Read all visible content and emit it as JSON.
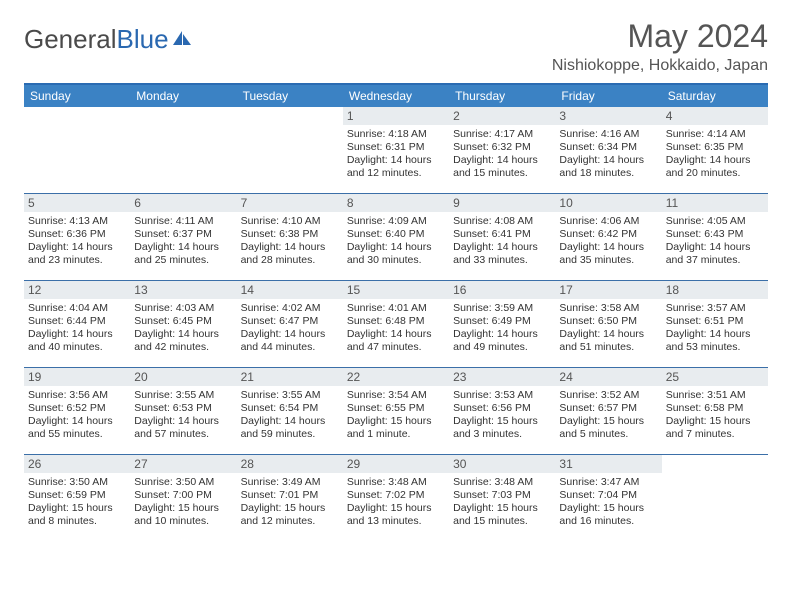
{
  "brand": {
    "part1": "General",
    "part2": "Blue"
  },
  "title": "May 2024",
  "location": "Nishiokoppe, Hokkaido, Japan",
  "colors": {
    "header_bg": "#3b82c4",
    "header_border_top": "#2a6bb2",
    "week_border": "#3b6fa8",
    "daynum_bg": "#e8ecef",
    "text_gray": "#555555",
    "brand_blue": "#2a68b0"
  },
  "dayNames": [
    "Sunday",
    "Monday",
    "Tuesday",
    "Wednesday",
    "Thursday",
    "Friday",
    "Saturday"
  ],
  "weeks": [
    [
      {
        "empty": true
      },
      {
        "empty": true
      },
      {
        "empty": true
      },
      {
        "num": "1",
        "sunrise": "4:18 AM",
        "sunset": "6:31 PM",
        "daylight": "14 hours and 12 minutes."
      },
      {
        "num": "2",
        "sunrise": "4:17 AM",
        "sunset": "6:32 PM",
        "daylight": "14 hours and 15 minutes."
      },
      {
        "num": "3",
        "sunrise": "4:16 AM",
        "sunset": "6:34 PM",
        "daylight": "14 hours and 18 minutes."
      },
      {
        "num": "4",
        "sunrise": "4:14 AM",
        "sunset": "6:35 PM",
        "daylight": "14 hours and 20 minutes."
      }
    ],
    [
      {
        "num": "5",
        "sunrise": "4:13 AM",
        "sunset": "6:36 PM",
        "daylight": "14 hours and 23 minutes."
      },
      {
        "num": "6",
        "sunrise": "4:11 AM",
        "sunset": "6:37 PM",
        "daylight": "14 hours and 25 minutes."
      },
      {
        "num": "7",
        "sunrise": "4:10 AM",
        "sunset": "6:38 PM",
        "daylight": "14 hours and 28 minutes."
      },
      {
        "num": "8",
        "sunrise": "4:09 AM",
        "sunset": "6:40 PM",
        "daylight": "14 hours and 30 minutes."
      },
      {
        "num": "9",
        "sunrise": "4:08 AM",
        "sunset": "6:41 PM",
        "daylight": "14 hours and 33 minutes."
      },
      {
        "num": "10",
        "sunrise": "4:06 AM",
        "sunset": "6:42 PM",
        "daylight": "14 hours and 35 minutes."
      },
      {
        "num": "11",
        "sunrise": "4:05 AM",
        "sunset": "6:43 PM",
        "daylight": "14 hours and 37 minutes."
      }
    ],
    [
      {
        "num": "12",
        "sunrise": "4:04 AM",
        "sunset": "6:44 PM",
        "daylight": "14 hours and 40 minutes."
      },
      {
        "num": "13",
        "sunrise": "4:03 AM",
        "sunset": "6:45 PM",
        "daylight": "14 hours and 42 minutes."
      },
      {
        "num": "14",
        "sunrise": "4:02 AM",
        "sunset": "6:47 PM",
        "daylight": "14 hours and 44 minutes."
      },
      {
        "num": "15",
        "sunrise": "4:01 AM",
        "sunset": "6:48 PM",
        "daylight": "14 hours and 47 minutes."
      },
      {
        "num": "16",
        "sunrise": "3:59 AM",
        "sunset": "6:49 PM",
        "daylight": "14 hours and 49 minutes."
      },
      {
        "num": "17",
        "sunrise": "3:58 AM",
        "sunset": "6:50 PM",
        "daylight": "14 hours and 51 minutes."
      },
      {
        "num": "18",
        "sunrise": "3:57 AM",
        "sunset": "6:51 PM",
        "daylight": "14 hours and 53 minutes."
      }
    ],
    [
      {
        "num": "19",
        "sunrise": "3:56 AM",
        "sunset": "6:52 PM",
        "daylight": "14 hours and 55 minutes."
      },
      {
        "num": "20",
        "sunrise": "3:55 AM",
        "sunset": "6:53 PM",
        "daylight": "14 hours and 57 minutes."
      },
      {
        "num": "21",
        "sunrise": "3:55 AM",
        "sunset": "6:54 PM",
        "daylight": "14 hours and 59 minutes."
      },
      {
        "num": "22",
        "sunrise": "3:54 AM",
        "sunset": "6:55 PM",
        "daylight": "15 hours and 1 minute."
      },
      {
        "num": "23",
        "sunrise": "3:53 AM",
        "sunset": "6:56 PM",
        "daylight": "15 hours and 3 minutes."
      },
      {
        "num": "24",
        "sunrise": "3:52 AM",
        "sunset": "6:57 PM",
        "daylight": "15 hours and 5 minutes."
      },
      {
        "num": "25",
        "sunrise": "3:51 AM",
        "sunset": "6:58 PM",
        "daylight": "15 hours and 7 minutes."
      }
    ],
    [
      {
        "num": "26",
        "sunrise": "3:50 AM",
        "sunset": "6:59 PM",
        "daylight": "15 hours and 8 minutes."
      },
      {
        "num": "27",
        "sunrise": "3:50 AM",
        "sunset": "7:00 PM",
        "daylight": "15 hours and 10 minutes."
      },
      {
        "num": "28",
        "sunrise": "3:49 AM",
        "sunset": "7:01 PM",
        "daylight": "15 hours and 12 minutes."
      },
      {
        "num": "29",
        "sunrise": "3:48 AM",
        "sunset": "7:02 PM",
        "daylight": "15 hours and 13 minutes."
      },
      {
        "num": "30",
        "sunrise": "3:48 AM",
        "sunset": "7:03 PM",
        "daylight": "15 hours and 15 minutes."
      },
      {
        "num": "31",
        "sunrise": "3:47 AM",
        "sunset": "7:04 PM",
        "daylight": "15 hours and 16 minutes."
      },
      {
        "empty": true
      }
    ]
  ],
  "labels": {
    "sunrise_prefix": "Sunrise: ",
    "sunset_prefix": "Sunset: ",
    "daylight_prefix": "Daylight: "
  }
}
